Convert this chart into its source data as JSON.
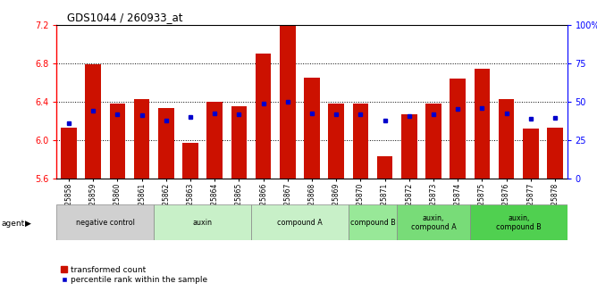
{
  "title": "GDS1044 / 260933_at",
  "samples": [
    "GSM25858",
    "GSM25859",
    "GSM25860",
    "GSM25861",
    "GSM25862",
    "GSM25863",
    "GSM25864",
    "GSM25865",
    "GSM25866",
    "GSM25867",
    "GSM25868",
    "GSM25869",
    "GSM25870",
    "GSM25871",
    "GSM25872",
    "GSM25873",
    "GSM25874",
    "GSM25875",
    "GSM25876",
    "GSM25877",
    "GSM25878"
  ],
  "bar_values": [
    6.13,
    6.79,
    6.38,
    6.43,
    6.33,
    5.97,
    6.4,
    6.35,
    6.9,
    7.2,
    6.65,
    6.38,
    6.38,
    5.83,
    6.27,
    6.38,
    6.64,
    6.74,
    6.43,
    6.12,
    6.13
  ],
  "percentile_values": [
    6.18,
    6.31,
    6.27,
    6.26,
    6.2,
    6.24,
    6.28,
    6.27,
    6.38,
    6.4,
    6.28,
    6.27,
    6.27,
    6.2,
    6.25,
    6.27,
    6.32,
    6.33,
    6.28,
    6.22,
    6.23
  ],
  "ymin": 5.6,
  "ymax": 7.2,
  "yticks": [
    5.6,
    6.0,
    6.4,
    6.8,
    7.2
  ],
  "bar_color": "#CC1100",
  "percentile_color": "#0000CC",
  "groups_data": [
    {
      "label": "negative control",
      "start": 0,
      "end": 3,
      "color": "#d0d0d0"
    },
    {
      "label": "auxin",
      "start": 4,
      "end": 7,
      "color": "#c8f0c8"
    },
    {
      "label": "compound A",
      "start": 8,
      "end": 11,
      "color": "#c8f0c8"
    },
    {
      "label": "compound B",
      "start": 12,
      "end": 13,
      "color": "#98e898"
    },
    {
      "label": "auxin,\ncompound A",
      "start": 14,
      "end": 16,
      "color": "#78dc78"
    },
    {
      "label": "auxin,\ncompound B",
      "start": 17,
      "end": 20,
      "color": "#50d050"
    }
  ],
  "legend_labels": [
    "transformed count",
    "percentile rank within the sample"
  ],
  "right_yticks": [
    0,
    25,
    50,
    75,
    100
  ],
  "right_yticklabels": [
    "0",
    "25",
    "50",
    "75",
    "100%"
  ]
}
